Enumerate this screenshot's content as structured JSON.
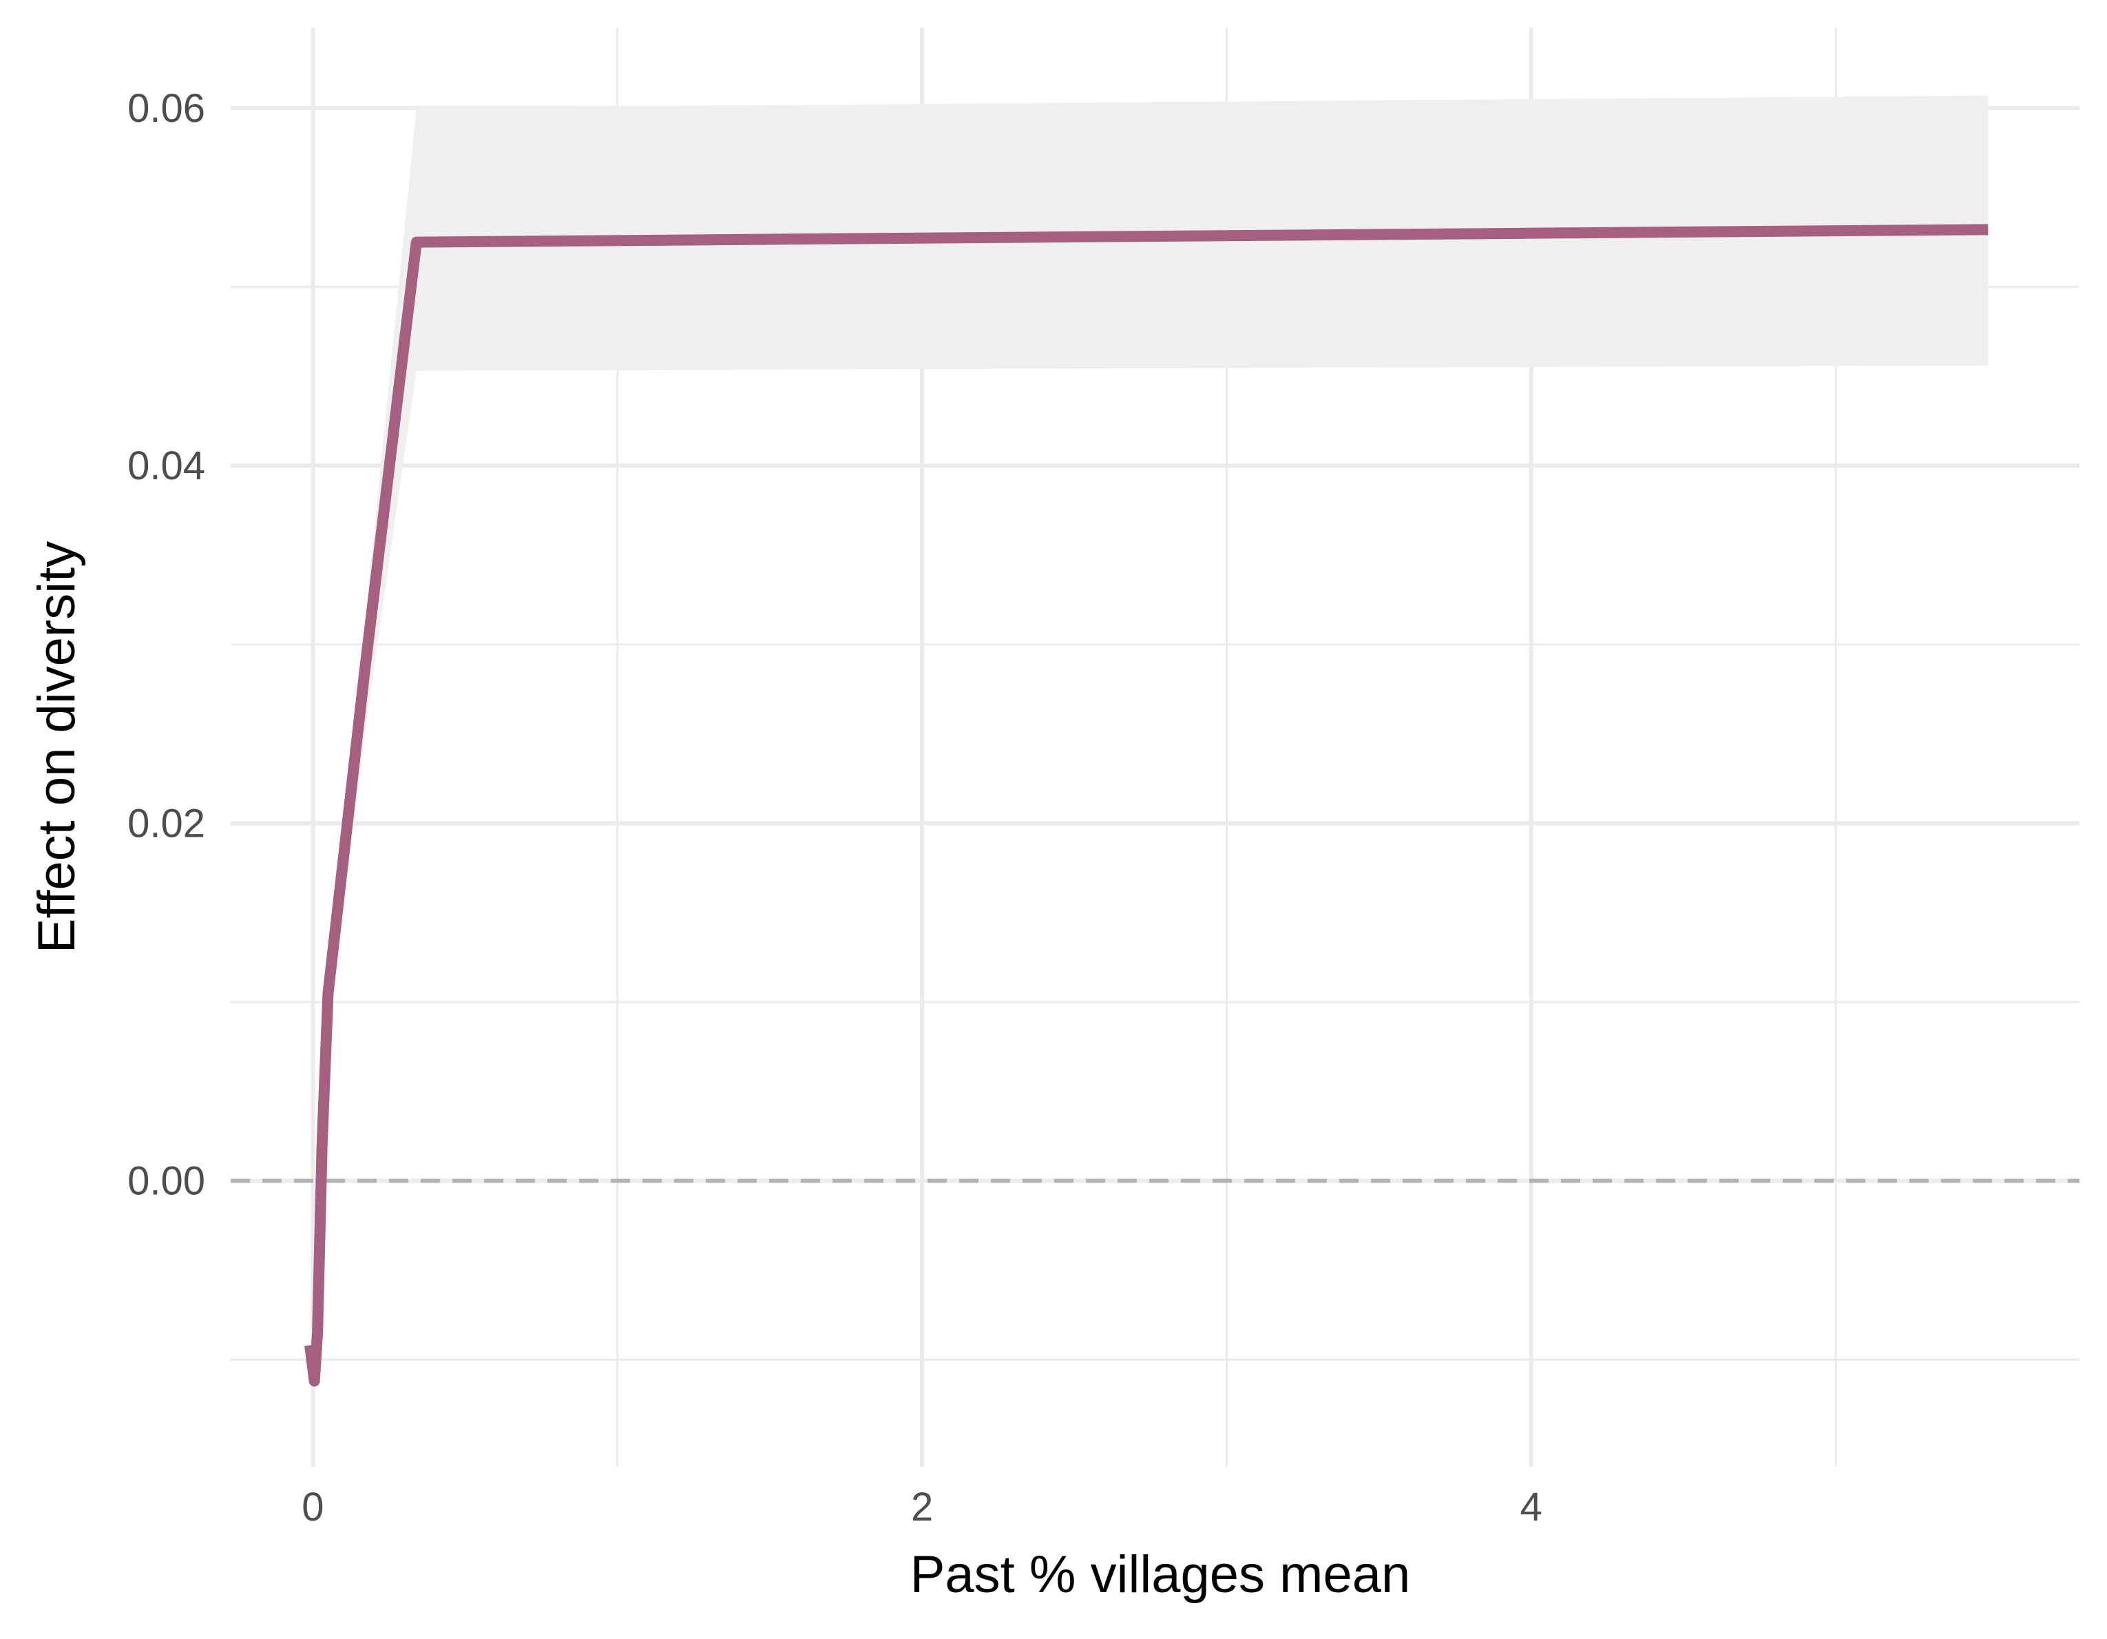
{
  "chart_data": {
    "type": "line",
    "xlabel": "Past % villages mean",
    "ylabel": "Effect on diversity",
    "xlim": [
      -0.27,
      5.8
    ],
    "ylim": [
      -0.016,
      0.0645
    ],
    "x_ticks": [
      {
        "value": 0,
        "label": "0"
      },
      {
        "value": 2,
        "label": "2"
      },
      {
        "value": 4,
        "label": "4"
      }
    ],
    "x_minor_ticks": [
      1,
      3,
      5
    ],
    "y_ticks": [
      {
        "value": 0.0,
        "label": "0.00"
      },
      {
        "value": 0.02,
        "label": "0.02"
      },
      {
        "value": 0.04,
        "label": "0.04"
      },
      {
        "value": 0.06,
        "label": "0.06"
      }
    ],
    "y_minor_ticks": [
      -0.01,
      0.01,
      0.03,
      0.05
    ],
    "grid": true,
    "reference_line": {
      "y": 0,
      "style": "dashed",
      "color": "#b3b3b3"
    },
    "series": [
      {
        "color": "#a5607f",
        "x": [
          -0.01,
          0.005,
          0.015,
          0.03,
          0.05,
          0.17,
          0.34,
          5.5
        ],
        "y": [
          -0.0092,
          -0.0112,
          -0.0085,
          0.002,
          0.0105,
          0.0285,
          0.0525,
          0.0532
        ]
      }
    ],
    "ribbon": {
      "color": "#efefef",
      "x": [
        0.005,
        0.05,
        0.17,
        0.34,
        5.5
      ],
      "lower": [
        -0.0112,
        0.0085,
        0.025,
        0.0453,
        0.0456
      ],
      "upper": [
        -0.0112,
        0.0115,
        0.031,
        0.06,
        0.0607
      ]
    }
  }
}
